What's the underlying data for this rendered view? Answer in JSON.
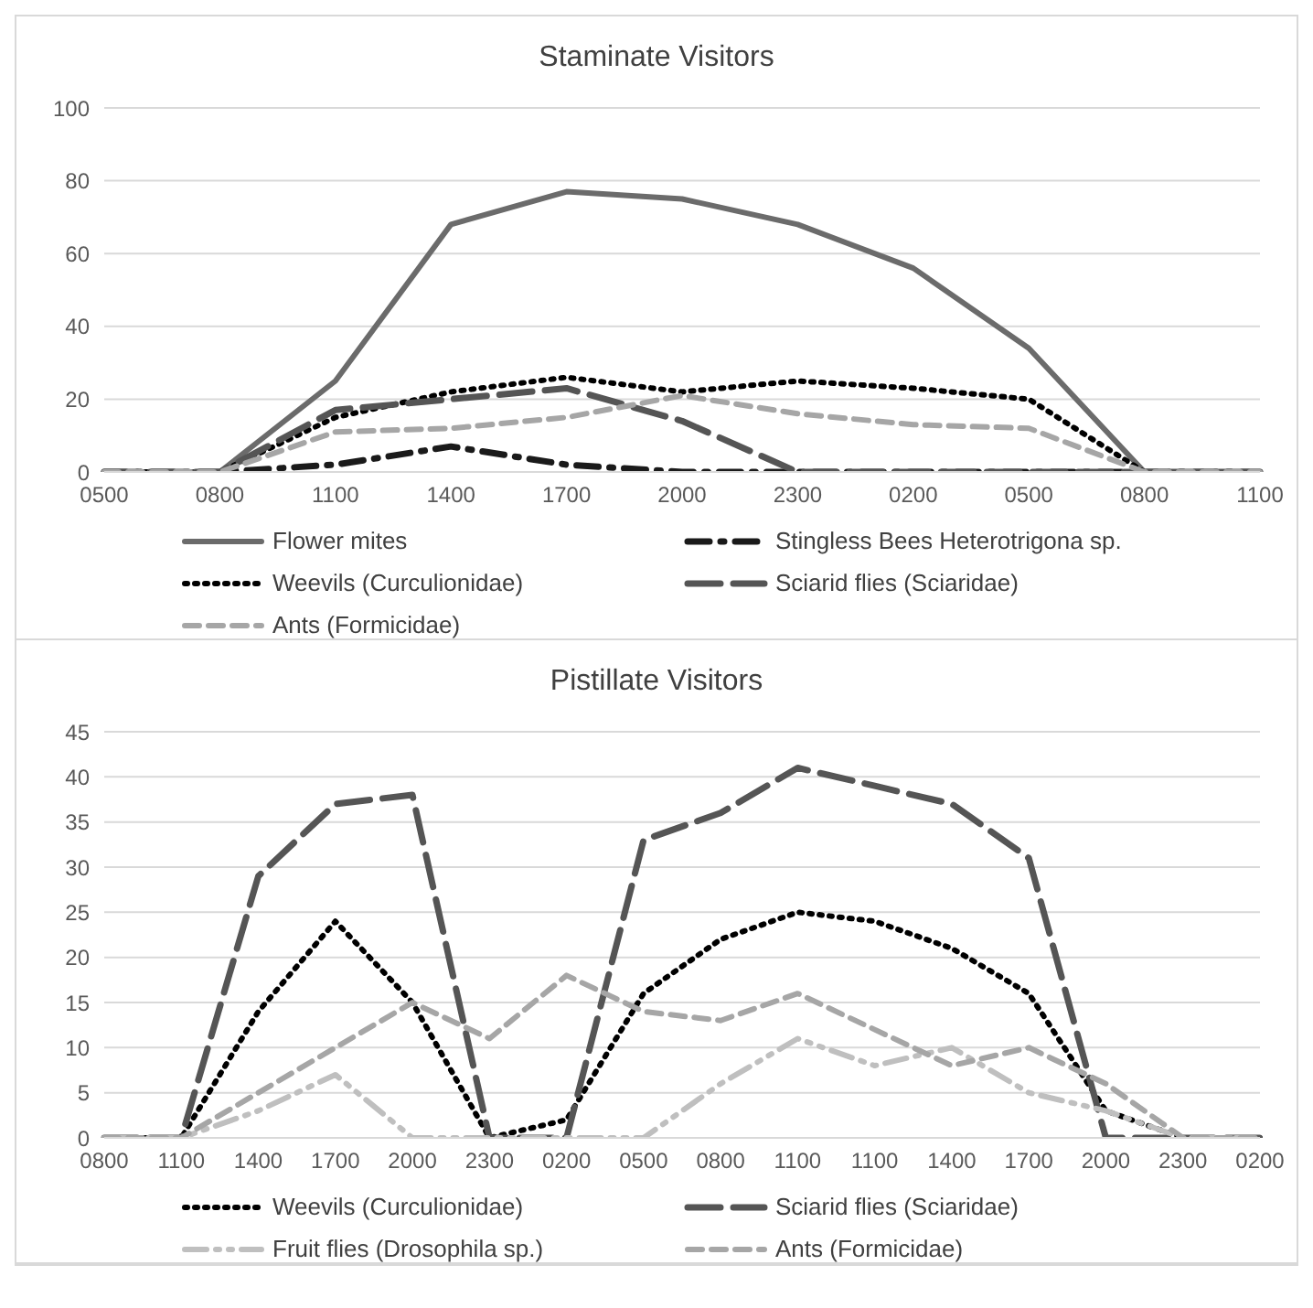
{
  "chart_data": [
    {
      "type": "line",
      "title": "Staminate Visitors",
      "categories": [
        "0500",
        "0800",
        "1100",
        "1400",
        "1700",
        "2000",
        "2300",
        "0200",
        "0500",
        "0800",
        "1100"
      ],
      "ylim": [
        0,
        100
      ],
      "yticks": [
        0,
        20,
        40,
        60,
        80,
        100
      ],
      "grid": "y",
      "legend": "bottom",
      "marker": "none",
      "series": [
        {
          "name": "Flower mites",
          "color": "#6b6b6b",
          "line_style": "solid",
          "values": [
            0,
            0,
            25,
            68,
            77,
            75,
            68,
            56,
            34,
            0,
            0
          ]
        },
        {
          "name": "Stingless Bees Heterotrigona sp.",
          "color": "#1a1a1a",
          "line_style": "dashdot",
          "values": [
            0,
            0,
            2,
            7,
            2,
            0,
            0,
            0,
            0,
            0,
            0
          ]
        },
        {
          "name": "Weevils (Curculionidae)",
          "color": "#000000",
          "line_style": "dotted",
          "values": [
            0,
            0,
            15,
            22,
            26,
            22,
            25,
            23,
            20,
            0,
            0
          ]
        },
        {
          "name": "Sciarid flies (Sciaridae)",
          "color": "#555555",
          "line_style": "longdash",
          "values": [
            0,
            0,
            17,
            20,
            23,
            14,
            0,
            0,
            0,
            0,
            0
          ]
        },
        {
          "name": "Ants (Formicidae)",
          "color": "#a6a6a6",
          "line_style": "dashed",
          "values": [
            0,
            0,
            11,
            12,
            15,
            21,
            16,
            13,
            12,
            0,
            0
          ]
        }
      ]
    },
    {
      "type": "line",
      "title": "Pistillate Visitors",
      "categories": [
        "0800",
        "1100",
        "1400",
        "1700",
        "2000",
        "2300",
        "0200",
        "0500",
        "0800",
        "1100",
        "1100",
        "1400",
        "1700",
        "2000",
        "2300",
        "0200"
      ],
      "ylim": [
        0,
        45
      ],
      "yticks": [
        0,
        5,
        10,
        15,
        20,
        25,
        30,
        35,
        40,
        45
      ],
      "grid": "y",
      "legend": "bottom",
      "marker": "none",
      "series": [
        {
          "name": "Weevils (Curculionidae)",
          "color": "#000000",
          "line_style": "dotted",
          "values": [
            0,
            0,
            14,
            24,
            15,
            0,
            2,
            16,
            22,
            25,
            24,
            21,
            16,
            3,
            0,
            0
          ]
        },
        {
          "name": "Sciarid flies (Sciaridae)",
          "color": "#555555",
          "line_style": "longdash",
          "values": [
            0,
            0,
            29,
            37,
            38,
            0,
            0,
            33,
            36,
            41,
            39,
            37,
            31,
            0,
            0,
            0
          ]
        },
        {
          "name": "Fruit flies (Drosophila sp.)",
          "color": "#bfbfbf",
          "line_style": "dashdotdot",
          "values": [
            0,
            0,
            3,
            7,
            0,
            0,
            0,
            0,
            6,
            11,
            8,
            10,
            5,
            3,
            0,
            0
          ]
        },
        {
          "name": "Ants (Formicidae)",
          "color": "#a6a6a6",
          "line_style": "dashed",
          "values": [
            0,
            0,
            5,
            10,
            15,
            11,
            18,
            14,
            13,
            16,
            12,
            8,
            10,
            6,
            0,
            0
          ]
        }
      ]
    }
  ]
}
